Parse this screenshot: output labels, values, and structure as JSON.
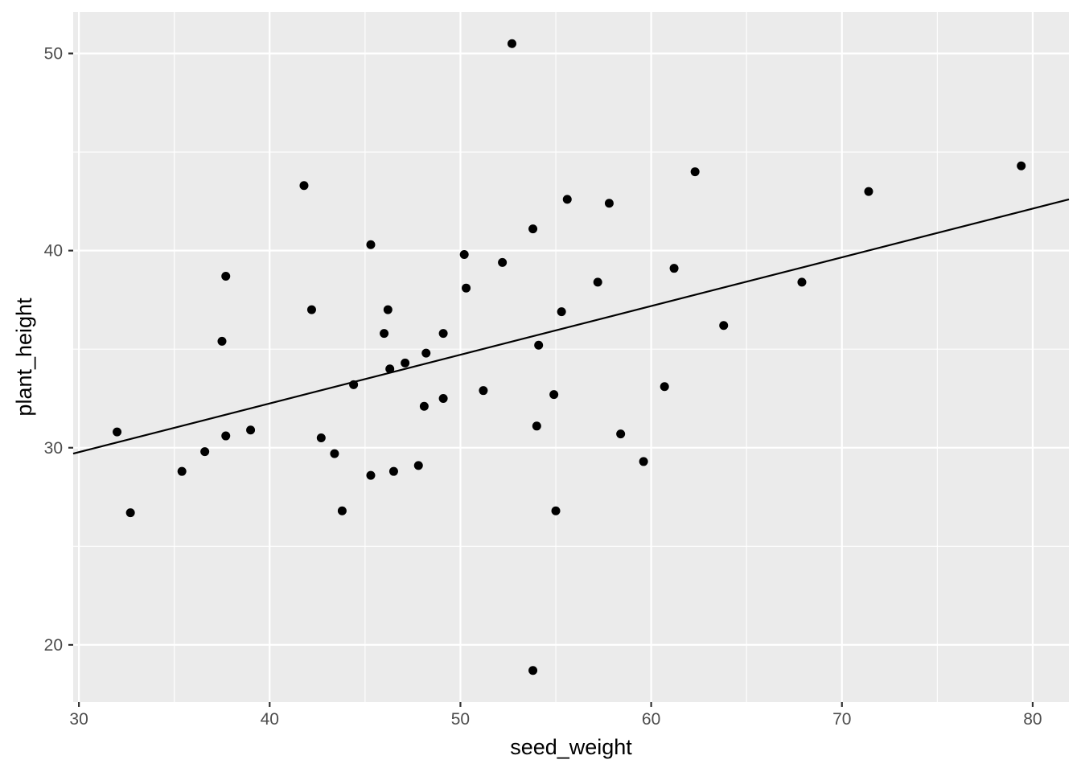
{
  "chart_data": {
    "type": "scatter",
    "title": "",
    "xlabel": "seed_weight",
    "ylabel": "plant_height",
    "xlim": [
      29.7,
      81.9
    ],
    "ylim": [
      17.1,
      52.1
    ],
    "x_ticks": [
      30,
      40,
      50,
      60,
      70,
      80
    ],
    "y_ticks": [
      20,
      30,
      40,
      50
    ],
    "grid": true,
    "legend": "none",
    "colors": {
      "panel": "#ebebeb",
      "grid": "#ffffff",
      "points": "#000000",
      "line": "#000000",
      "tick_text": "#4d4d4d",
      "axis_title": "#000000"
    },
    "series": [
      {
        "type": "scatter",
        "points": [
          [
            32.0,
            30.8
          ],
          [
            32.7,
            26.7
          ],
          [
            35.4,
            28.8
          ],
          [
            36.6,
            29.8
          ],
          [
            37.5,
            35.4
          ],
          [
            37.7,
            38.7
          ],
          [
            37.7,
            30.6
          ],
          [
            39.0,
            30.9
          ],
          [
            41.8,
            43.3
          ],
          [
            42.2,
            37.0
          ],
          [
            42.7,
            30.5
          ],
          [
            43.4,
            29.7
          ],
          [
            43.8,
            26.8
          ],
          [
            44.4,
            33.2
          ],
          [
            45.3,
            40.3
          ],
          [
            45.3,
            28.6
          ],
          [
            46.0,
            35.8
          ],
          [
            46.2,
            37.0
          ],
          [
            46.3,
            34.0
          ],
          [
            46.5,
            28.8
          ],
          [
            47.1,
            34.3
          ],
          [
            47.8,
            29.1
          ],
          [
            48.1,
            32.1
          ],
          [
            48.2,
            34.8
          ],
          [
            49.1,
            35.8
          ],
          [
            49.1,
            32.5
          ],
          [
            50.2,
            39.8
          ],
          [
            50.3,
            38.1
          ],
          [
            51.2,
            32.9
          ],
          [
            52.2,
            39.4
          ],
          [
            52.7,
            50.5
          ],
          [
            53.8,
            41.1
          ],
          [
            53.8,
            18.7
          ],
          [
            54.0,
            31.1
          ],
          [
            54.1,
            35.2
          ],
          [
            54.9,
            32.7
          ],
          [
            55.0,
            26.8
          ],
          [
            55.3,
            36.9
          ],
          [
            55.6,
            42.6
          ],
          [
            57.2,
            38.4
          ],
          [
            57.8,
            42.4
          ],
          [
            58.4,
            30.7
          ],
          [
            59.6,
            29.3
          ],
          [
            60.7,
            33.1
          ],
          [
            61.2,
            39.1
          ],
          [
            62.3,
            44.0
          ],
          [
            63.8,
            36.2
          ],
          [
            67.9,
            38.4
          ],
          [
            71.4,
            43.0
          ],
          [
            79.4,
            44.3
          ]
        ]
      },
      {
        "type": "line",
        "points": [
          [
            29.7,
            29.7
          ],
          [
            81.9,
            42.6
          ]
        ]
      }
    ]
  }
}
